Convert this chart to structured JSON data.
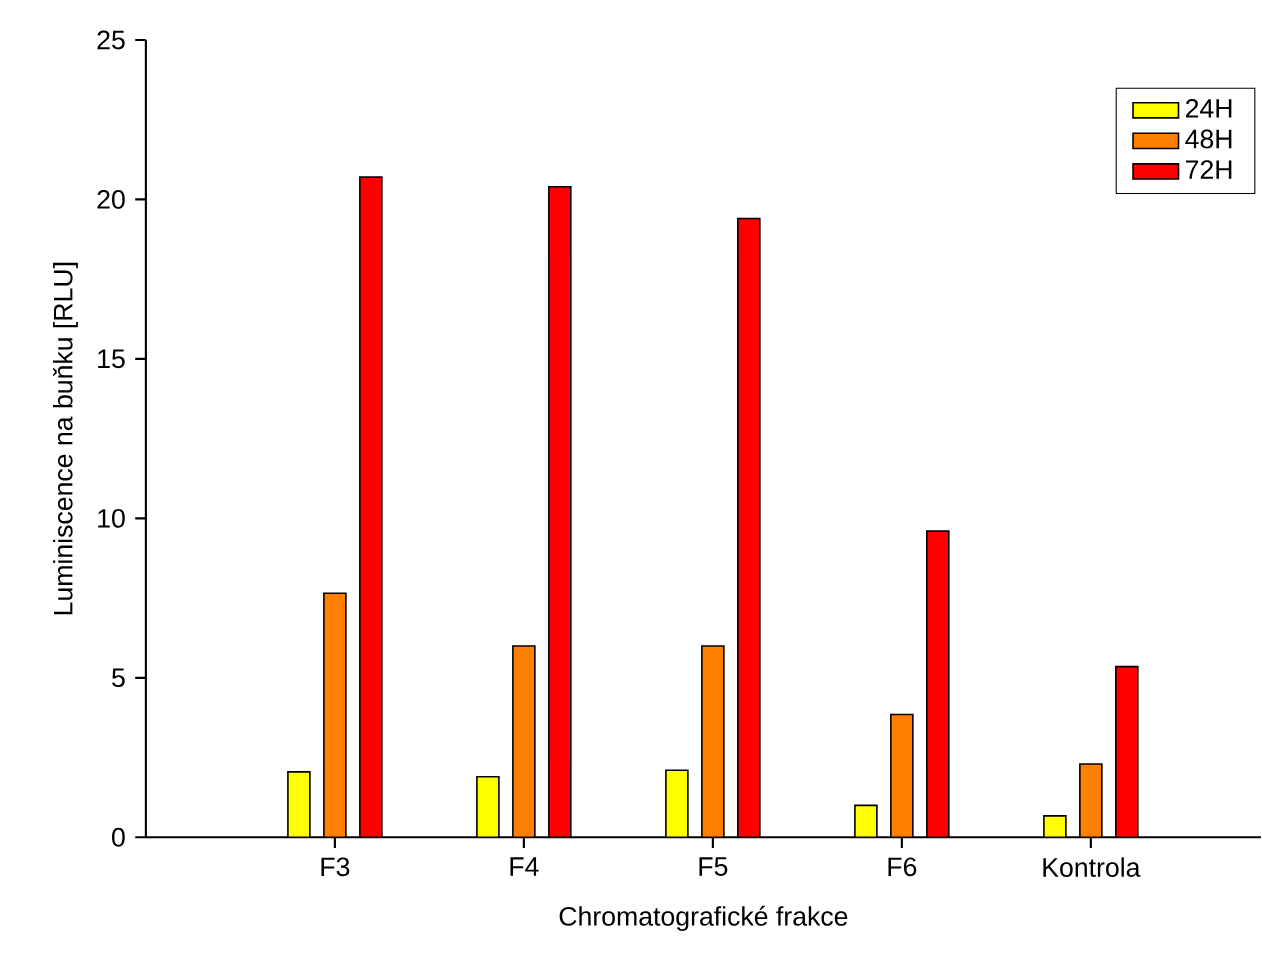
{
  "chart_data": {
    "type": "bar",
    "xlabel": "Chromatografické frakce",
    "ylabel": "Luminiscence na buňku [RLU]",
    "categories": [
      "F3",
      "F4",
      "F5",
      "F6",
      "Kontrola"
    ],
    "series": [
      {
        "name": "24H",
        "color": "#ffff00",
        "values": [
          2.05,
          1.9,
          2.1,
          1.0,
          0.67
        ]
      },
      {
        "name": "48H",
        "color": "#ff8000",
        "values": [
          7.65,
          6.0,
          6.0,
          3.85,
          2.3
        ]
      },
      {
        "name": "72H",
        "color": "#ff0000",
        "values": [
          20.7,
          20.4,
          19.4,
          9.6,
          5.35
        ]
      }
    ],
    "ylim": [
      0,
      25
    ],
    "yticks": [
      0,
      5,
      10,
      15,
      20,
      25
    ],
    "legend": "top right"
  }
}
